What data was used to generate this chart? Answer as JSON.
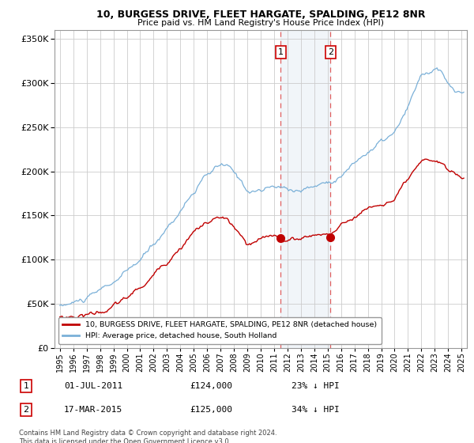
{
  "title": "10, BURGESS DRIVE, FLEET HARGATE, SPALDING, PE12 8NR",
  "subtitle": "Price paid vs. HM Land Registry's House Price Index (HPI)",
  "footer": "Contains HM Land Registry data © Crown copyright and database right 2024.\nThis data is licensed under the Open Government Licence v3.0.",
  "legend_line1": "10, BURGESS DRIVE, FLEET HARGATE, SPALDING, PE12 8NR (detached house)",
  "legend_line2": "HPI: Average price, detached house, South Holland",
  "transaction1_label": "1",
  "transaction1_date": "01-JUL-2011",
  "transaction1_price": "£124,000",
  "transaction1_note": "23% ↓ HPI",
  "transaction2_label": "2",
  "transaction2_date": "17-MAR-2015",
  "transaction2_price": "£125,000",
  "transaction2_note": "34% ↓ HPI",
  "hpi_color": "#7ab0d8",
  "price_color": "#c00000",
  "highlight_color": "#dce6f1",
  "dashed_line_color": "#e06060",
  "ylim": [
    0,
    360000
  ],
  "yticks": [
    0,
    50000,
    100000,
    150000,
    200000,
    250000,
    300000,
    350000
  ],
  "transaction1_x": 2011.5,
  "transaction2_x": 2015.21,
  "transaction1_y": 124000,
  "transaction2_y": 125000,
  "highlight_x_start": 2011.5,
  "highlight_x_end": 2015.21,
  "xmin": 1994.6,
  "xmax": 2025.4
}
